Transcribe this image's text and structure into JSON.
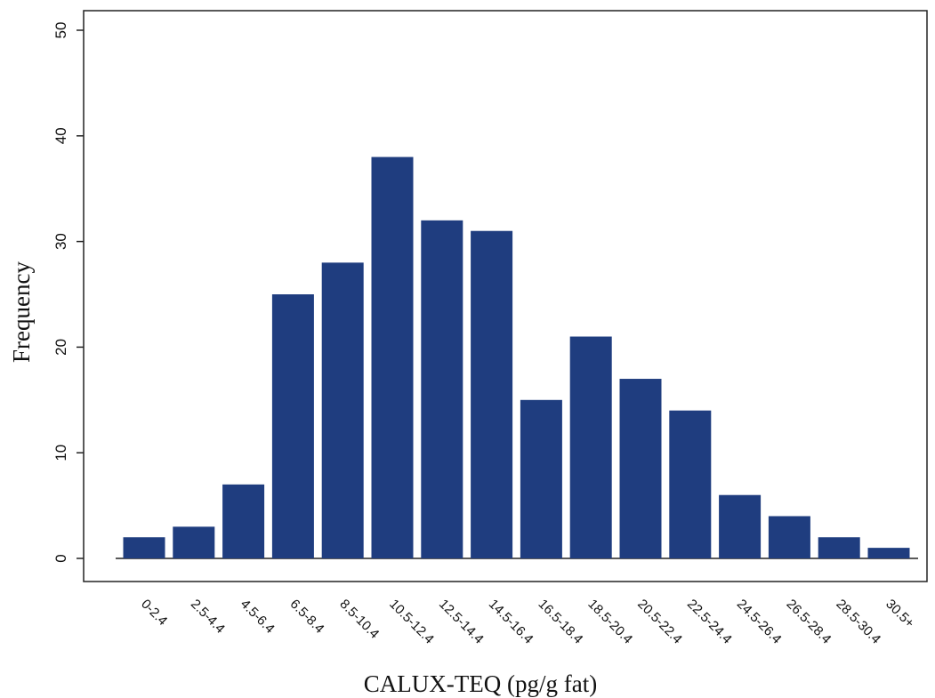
{
  "chart_data": {
    "type": "bar",
    "categories": [
      "0-2.4",
      "2.5-4.4",
      "4.5-6.4",
      "6.5-8.4",
      "8.5-10.4",
      "10.5-12.4",
      "12.5-14.4",
      "14.5-16.4",
      "16.5-18.4",
      "18.5-20.4",
      "20.5-22.4",
      "22.5-24.4",
      "24.5-26.4",
      "26.5-28.4",
      "28.5-30.4",
      "30.5+"
    ],
    "values": [
      2,
      3,
      7,
      25,
      28,
      38,
      32,
      31,
      15,
      21,
      17,
      14,
      6,
      4,
      2,
      1
    ],
    "xlabel": "CALUX-TEQ (pg/g fat)",
    "ylabel": "Frequency",
    "ylim": [
      0,
      50
    ],
    "yticks": [
      0,
      10,
      20,
      30,
      40,
      50
    ],
    "grid": false,
    "bar_color": "#1f3d7f"
  }
}
